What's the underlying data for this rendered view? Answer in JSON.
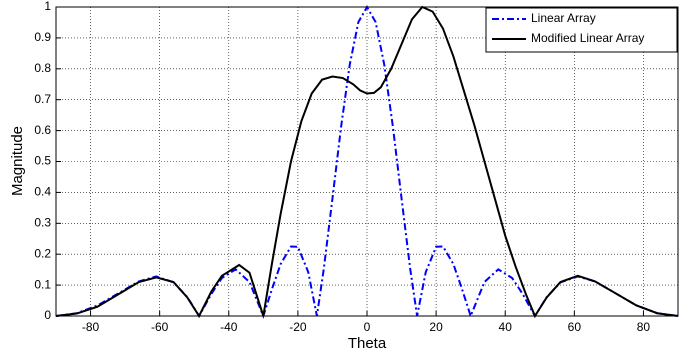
{
  "chart_data": {
    "type": "line",
    "xlabel": "Theta",
    "ylabel": "Magnitude",
    "xlim": [
      -90,
      90
    ],
    "ylim": [
      0,
      1
    ],
    "xticks": [
      -80,
      -60,
      -40,
      -20,
      0,
      20,
      40,
      60,
      80
    ],
    "yticks": [
      0,
      0.1,
      0.2,
      0.3,
      0.4,
      0.5,
      0.6,
      0.7,
      0.8,
      0.9,
      1
    ],
    "grid": true,
    "legend": "upper right",
    "series": [
      {
        "name": "Linear Array",
        "color": "#0000ff",
        "dash": "dashdot",
        "x": [
          -90,
          -84,
          -78,
          -72,
          -66,
          -61,
          -56,
          -52,
          -48.6,
          -45,
          -42,
          -38,
          -34,
          -30,
          -27.5,
          -25,
          -22,
          -20,
          -17,
          -14.5,
          -12.5,
          -10,
          -7.5,
          -5,
          -2.5,
          0,
          2.5,
          5,
          7.5,
          10,
          12.5,
          14.5,
          17,
          20,
          22,
          25,
          27.5,
          30,
          34,
          38,
          42,
          45,
          48.6,
          52,
          56,
          61,
          66,
          72,
          78,
          84,
          90
        ],
        "values": [
          0,
          0.009,
          0.034,
          0.073,
          0.112,
          0.128,
          0.109,
          0.061,
          0,
          0.072,
          0.123,
          0.151,
          0.11,
          0,
          0.087,
          0.168,
          0.225,
          0.224,
          0.142,
          0,
          0.153,
          0.38,
          0.612,
          0.813,
          0.951,
          1,
          0.951,
          0.813,
          0.612,
          0.38,
          0.153,
          0,
          0.142,
          0.224,
          0.225,
          0.168,
          0.087,
          0,
          0.11,
          0.151,
          0.123,
          0.072,
          0,
          0.061,
          0.109,
          0.128,
          0.112,
          0.073,
          0.034,
          0.009,
          0
        ]
      },
      {
        "name": "Modified Linear Array",
        "color": "#000000",
        "dash": "solid",
        "x": [
          -90,
          -84,
          -78,
          -72,
          -66,
          -61,
          -56,
          -52,
          -48.6,
          -45,
          -42,
          -37,
          -34,
          -30,
          -27.5,
          -25,
          -22,
          -19,
          -16,
          -13,
          -10,
          -7,
          -4,
          -2,
          0,
          2,
          4,
          7,
          10,
          13,
          16,
          19,
          22,
          25,
          28,
          31,
          34,
          37,
          40,
          43,
          46,
          48.6,
          52,
          56,
          61,
          66,
          72,
          78,
          84,
          90
        ],
        "values": [
          0,
          0.008,
          0.03,
          0.07,
          0.11,
          0.125,
          0.11,
          0.06,
          0,
          0.08,
          0.13,
          0.165,
          0.14,
          0,
          0.17,
          0.33,
          0.5,
          0.63,
          0.72,
          0.765,
          0.775,
          0.77,
          0.75,
          0.73,
          0.72,
          0.722,
          0.74,
          0.8,
          0.88,
          0.96,
          1.0,
          0.985,
          0.93,
          0.84,
          0.73,
          0.62,
          0.5,
          0.38,
          0.26,
          0.16,
          0.07,
          0,
          0.06,
          0.11,
          0.13,
          0.112,
          0.073,
          0.034,
          0.009,
          0
        ]
      }
    ]
  }
}
